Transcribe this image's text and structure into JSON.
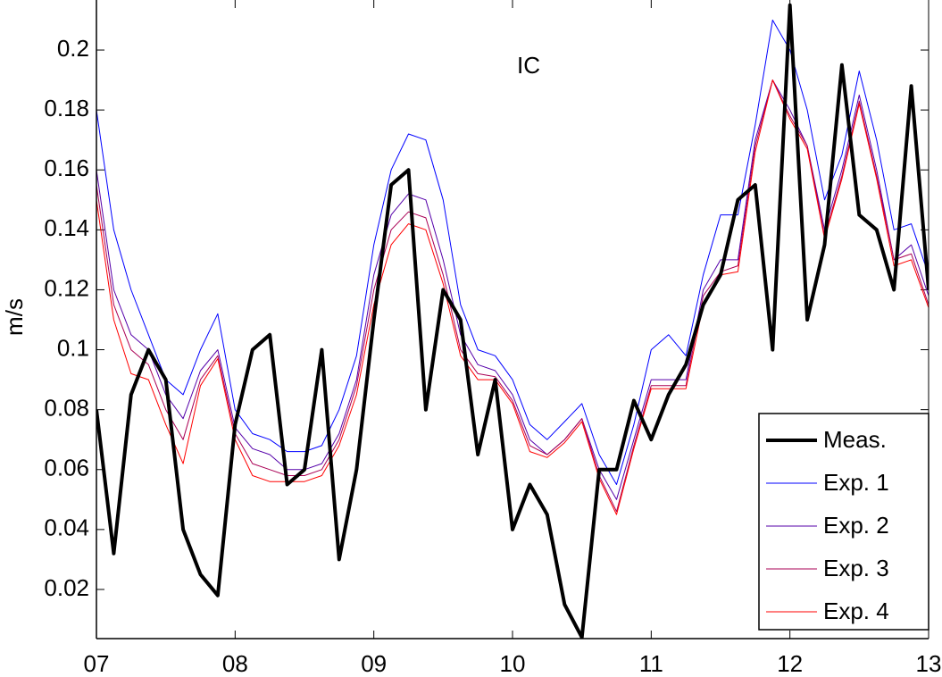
{
  "chart_data": {
    "type": "line",
    "title": "IC",
    "y_label": "m/s",
    "x": [
      7,
      7.125,
      7.25,
      7.375,
      7.5,
      7.625,
      7.75,
      7.875,
      8,
      8.125,
      8.25,
      8.375,
      8.5,
      8.625,
      8.75,
      8.875,
      9,
      9.125,
      9.25,
      9.375,
      9.5,
      9.625,
      9.75,
      9.875,
      10,
      10.125,
      10.25,
      10.375,
      10.5,
      10.625,
      10.75,
      10.875,
      11,
      11.125,
      11.25,
      11.375,
      11.5,
      11.625,
      11.75,
      11.875,
      12,
      12.125,
      12.25,
      12.375,
      12.5,
      12.625,
      12.75,
      12.875,
      13
    ],
    "series": [
      {
        "name": "Meas.",
        "color": "#000000",
        "width": 4,
        "values": [
          0.08,
          0.032,
          0.085,
          0.1,
          0.09,
          0.04,
          0.025,
          0.018,
          0.075,
          0.1,
          0.105,
          0.055,
          0.06,
          0.1,
          0.03,
          0.06,
          0.11,
          0.155,
          0.16,
          0.08,
          0.12,
          0.11,
          0.065,
          0.09,
          0.04,
          0.055,
          0.045,
          0.015,
          0.004,
          0.06,
          0.06,
          0.083,
          0.07,
          0.085,
          0.095,
          0.115,
          0.125,
          0.15,
          0.155,
          0.1,
          0.215,
          0.11,
          0.135,
          0.195,
          0.145,
          0.14,
          0.12,
          0.188,
          0.12
        ]
      },
      {
        "name": "Exp. 1",
        "color": "#0000ff",
        "width": 1,
        "values": [
          0.18,
          0.14,
          0.12,
          0.105,
          0.09,
          0.085,
          0.1,
          0.112,
          0.08,
          0.072,
          0.07,
          0.066,
          0.066,
          0.068,
          0.08,
          0.098,
          0.135,
          0.16,
          0.172,
          0.17,
          0.15,
          0.115,
          0.1,
          0.098,
          0.09,
          0.075,
          0.07,
          0.076,
          0.082,
          0.065,
          0.055,
          0.075,
          0.1,
          0.105,
          0.098,
          0.125,
          0.145,
          0.145,
          0.175,
          0.21,
          0.2,
          0.18,
          0.15,
          0.165,
          0.193,
          0.17,
          0.14,
          0.142,
          0.125
        ]
      },
      {
        "name": "Exp. 2",
        "color": "#5500aa",
        "width": 1,
        "values": [
          0.16,
          0.12,
          0.105,
          0.1,
          0.085,
          0.077,
          0.093,
          0.1,
          0.074,
          0.067,
          0.065,
          0.06,
          0.06,
          0.062,
          0.072,
          0.09,
          0.125,
          0.145,
          0.152,
          0.15,
          0.13,
          0.105,
          0.095,
          0.093,
          0.085,
          0.07,
          0.065,
          0.07,
          0.077,
          0.06,
          0.05,
          0.07,
          0.09,
          0.09,
          0.09,
          0.12,
          0.13,
          0.13,
          0.17,
          0.19,
          0.18,
          0.168,
          0.14,
          0.16,
          0.185,
          0.16,
          0.13,
          0.135,
          0.118
        ]
      },
      {
        "name": "Exp. 3",
        "color": "#aa0055",
        "width": 1,
        "values": [
          0.155,
          0.115,
          0.1,
          0.095,
          0.08,
          0.07,
          0.09,
          0.098,
          0.072,
          0.062,
          0.06,
          0.058,
          0.058,
          0.06,
          0.07,
          0.088,
          0.12,
          0.14,
          0.146,
          0.144,
          0.125,
          0.1,
          0.092,
          0.091,
          0.083,
          0.068,
          0.065,
          0.07,
          0.077,
          0.058,
          0.046,
          0.068,
          0.088,
          0.088,
          0.088,
          0.118,
          0.126,
          0.128,
          0.168,
          0.19,
          0.178,
          0.168,
          0.138,
          0.158,
          0.183,
          0.158,
          0.13,
          0.132,
          0.115
        ]
      },
      {
        "name": "Exp. 4",
        "color": "#ff0000",
        "width": 1,
        "values": [
          0.15,
          0.11,
          0.092,
          0.09,
          0.075,
          0.062,
          0.088,
          0.097,
          0.07,
          0.058,
          0.056,
          0.056,
          0.056,
          0.058,
          0.068,
          0.085,
          0.115,
          0.135,
          0.142,
          0.14,
          0.122,
          0.098,
          0.09,
          0.09,
          0.082,
          0.066,
          0.064,
          0.069,
          0.076,
          0.057,
          0.045,
          0.067,
          0.087,
          0.087,
          0.087,
          0.115,
          0.125,
          0.126,
          0.166,
          0.19,
          0.177,
          0.167,
          0.137,
          0.157,
          0.182,
          0.157,
          0.128,
          0.13,
          0.114
        ]
      }
    ],
    "xlim": [
      7,
      13
    ],
    "xticks": [
      {
        "value": 7,
        "label": "07"
      },
      {
        "value": 8,
        "label": "08"
      },
      {
        "value": 9,
        "label": "09"
      },
      {
        "value": 10,
        "label": "10"
      },
      {
        "value": 11,
        "label": "11"
      },
      {
        "value": 12,
        "label": "12"
      },
      {
        "value": 13,
        "label": "13"
      }
    ],
    "ylim": [
      0.0036,
      0.2167
    ],
    "yticks": [
      0.02,
      0.04,
      0.06,
      0.08,
      0.1,
      0.12,
      0.14,
      0.16,
      0.18,
      0.2
    ],
    "grid": false,
    "legend": "lower right"
  }
}
